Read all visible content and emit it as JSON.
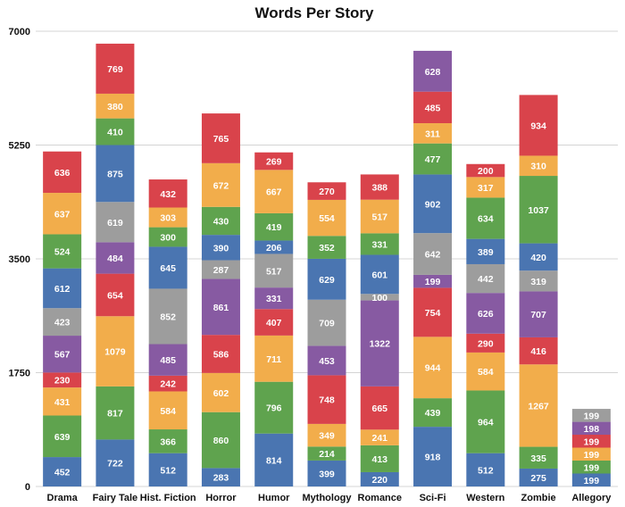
{
  "chart_data": {
    "type": "bar",
    "stacked": true,
    "title": "Words Per Story",
    "xlabel": "",
    "ylabel": "",
    "ylim": [
      0,
      7000
    ],
    "yticks": [
      0,
      1750,
      3500,
      5250,
      7000
    ],
    "grid": true,
    "legend": "none",
    "palette": {
      "blue": "#4a75b1",
      "green": "#5fa34e",
      "orange": "#f2ad4b",
      "red": "#d9434b",
      "purple": "#875aa2",
      "gray": "#9d9d9d"
    },
    "categories": [
      "Drama",
      "Fairy Tale",
      "Hist. Fiction",
      "Horror",
      "Humor",
      "Mythology",
      "Romance",
      "Sci-Fi",
      "Western",
      "Zombie",
      "Allegory"
    ],
    "stacks": [
      [
        [
          "blue",
          452
        ],
        [
          "green",
          639
        ],
        [
          "orange",
          431
        ],
        [
          "red",
          230
        ],
        [
          "purple",
          567
        ],
        [
          "gray",
          423
        ],
        [
          "blue",
          612
        ],
        [
          "green",
          524
        ],
        [
          "orange",
          637
        ],
        [
          "red",
          636
        ]
      ],
      [
        [
          "blue",
          722
        ],
        [
          "green",
          817
        ],
        [
          "orange",
          1079
        ],
        [
          "red",
          654
        ],
        [
          "purple",
          484
        ],
        [
          "gray",
          619
        ],
        [
          "blue",
          875
        ],
        [
          "green",
          410
        ],
        [
          "orange",
          380
        ],
        [
          "red",
          769
        ]
      ],
      [
        [
          "blue",
          512
        ],
        [
          "green",
          366
        ],
        [
          "orange",
          584
        ],
        [
          "red",
          242
        ],
        [
          "purple",
          485
        ],
        [
          "gray",
          852
        ],
        [
          "blue",
          645
        ],
        [
          "green",
          300
        ],
        [
          "orange",
          303
        ],
        [
          "red",
          432
        ]
      ],
      [
        [
          "blue",
          283
        ],
        [
          "green",
          860
        ],
        [
          "orange",
          602
        ],
        [
          "red",
          586
        ],
        [
          "purple",
          861
        ],
        [
          "gray",
          287
        ],
        [
          "blue",
          390
        ],
        [
          "green",
          430
        ],
        [
          "orange",
          672
        ],
        [
          "red",
          765
        ]
      ],
      [
        [
          "blue",
          814
        ],
        [
          "green",
          796
        ],
        [
          "orange",
          711
        ],
        [
          "red",
          407
        ],
        [
          "purple",
          331
        ],
        [
          "gray",
          517
        ],
        [
          "blue",
          206
        ],
        [
          "green",
          419
        ],
        [
          "orange",
          667
        ],
        [
          "red",
          269
        ]
      ],
      [
        [
          "blue",
          399
        ],
        [
          "green",
          214
        ],
        [
          "orange",
          349
        ],
        [
          "red",
          748
        ],
        [
          "purple",
          453
        ],
        [
          "gray",
          709
        ],
        [
          "blue",
          629
        ],
        [
          "green",
          352
        ],
        [
          "orange",
          554
        ],
        [
          "red",
          270
        ]
      ],
      [
        [
          "blue",
          220
        ],
        [
          "green",
          413
        ],
        [
          "orange",
          241
        ],
        [
          "red",
          665
        ],
        [
          "purple",
          1322
        ],
        [
          "gray",
          100
        ],
        [
          "blue",
          601
        ],
        [
          "green",
          331
        ],
        [
          "orange",
          517
        ],
        [
          "red",
          388
        ]
      ],
      [
        [
          "blue",
          918
        ],
        [
          "green",
          439
        ],
        [
          "orange",
          944
        ],
        [
          "red",
          754
        ],
        [
          "purple",
          199
        ],
        [
          "gray",
          642
        ],
        [
          "blue",
          902
        ],
        [
          "green",
          477
        ],
        [
          "orange",
          311
        ],
        [
          "red",
          485
        ],
        [
          "purple",
          628
        ]
      ],
      [
        [
          "blue",
          512
        ],
        [
          "green",
          964
        ],
        [
          "orange",
          584
        ],
        [
          "red",
          290
        ],
        [
          "purple",
          626
        ],
        [
          "gray",
          442
        ],
        [
          "blue",
          389
        ],
        [
          "green",
          634
        ],
        [
          "orange",
          317
        ],
        [
          "red",
          200
        ]
      ],
      [
        [
          "blue",
          275
        ],
        [
          "green",
          335
        ],
        [
          "orange",
          1267
        ],
        [
          "red",
          416
        ],
        [
          "purple",
          707
        ],
        [
          "gray",
          319
        ],
        [
          "blue",
          420
        ],
        [
          "green",
          1037
        ],
        [
          "orange",
          310
        ],
        [
          "red",
          934
        ]
      ],
      [
        [
          "blue",
          199
        ],
        [
          "green",
          199
        ],
        [
          "orange",
          199
        ],
        [
          "red",
          199
        ],
        [
          "purple",
          198
        ],
        [
          "gray",
          199
        ]
      ]
    ]
  }
}
